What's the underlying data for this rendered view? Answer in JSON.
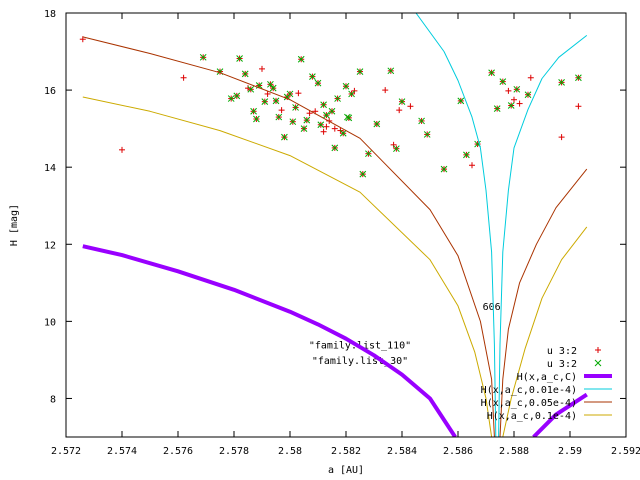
{
  "chart_data": {
    "type": "scatter",
    "xlabel": "a [AU]",
    "ylabel": "H [mag]",
    "xlim": [
      2.572,
      2.592
    ],
    "ylim": [
      7,
      18
    ],
    "grid": false,
    "legend_position": "bottom-right",
    "x_ticks": [
      {
        "v": 2.572,
        "label": "2.572"
      },
      {
        "v": 2.574,
        "label": "2.574"
      },
      {
        "v": 2.576,
        "label": "2.576"
      },
      {
        "v": 2.578,
        "label": "2.578"
      },
      {
        "v": 2.58,
        "label": "2.58"
      },
      {
        "v": 2.582,
        "label": "2.582"
      },
      {
        "v": 2.584,
        "label": "2.584"
      },
      {
        "v": 2.586,
        "label": "2.586"
      },
      {
        "v": 2.588,
        "label": "2.588"
      },
      {
        "v": 2.59,
        "label": "2.59"
      },
      {
        "v": 2.592,
        "label": "2.592"
      }
    ],
    "y_ticks": [
      {
        "v": 8,
        "label": "8"
      },
      {
        "v": 10,
        "label": "10"
      },
      {
        "v": 12,
        "label": "12"
      },
      {
        "v": 14,
        "label": "14"
      },
      {
        "v": 16,
        "label": "16"
      },
      {
        "v": 18,
        "label": "18"
      }
    ],
    "annotations": [
      {
        "text": "606",
        "x": 2.5872,
        "y": 10.3,
        "anchor": "middle"
      },
      {
        "text": "\"family.list_110\"",
        "x": 2.5825,
        "y": 9.3,
        "anchor": "middle"
      },
      {
        "text": "\"family.list_30\"",
        "x": 2.5825,
        "y": 8.9,
        "anchor": "middle"
      }
    ],
    "series": [
      {
        "name": "u 3:2",
        "kind": "points",
        "marker": "plus",
        "color": "#dd0000",
        "points": [
          [
            2.5726,
            17.32
          ],
          [
            2.574,
            14.45
          ],
          [
            2.5903,
            15.58
          ],
          [
            2.5897,
            14.78
          ],
          [
            2.5762,
            16.32
          ],
          [
            2.5769,
            16.85
          ],
          [
            2.5775,
            16.48
          ],
          [
            2.5779,
            15.78
          ],
          [
            2.5781,
            15.85
          ],
          [
            2.5782,
            16.82
          ],
          [
            2.5784,
            16.42
          ],
          [
            2.5785,
            16.05
          ],
          [
            2.5786,
            16.02
          ],
          [
            2.5787,
            15.45
          ],
          [
            2.5788,
            15.25
          ],
          [
            2.5789,
            16.12
          ],
          [
            2.579,
            16.55
          ],
          [
            2.5791,
            15.7
          ],
          [
            2.5792,
            15.9
          ],
          [
            2.5793,
            16.15
          ],
          [
            2.5794,
            16.05
          ],
          [
            2.5795,
            15.72
          ],
          [
            2.5796,
            15.3
          ],
          [
            2.5797,
            15.48
          ],
          [
            2.5798,
            14.78
          ],
          [
            2.5799,
            15.82
          ],
          [
            2.58,
            15.9
          ],
          [
            2.5801,
            15.18
          ],
          [
            2.5802,
            15.55
          ],
          [
            2.5803,
            15.92
          ],
          [
            2.5804,
            16.8
          ],
          [
            2.5805,
            15.0
          ],
          [
            2.5806,
            15.22
          ],
          [
            2.5807,
            15.4
          ],
          [
            2.5808,
            16.35
          ],
          [
            2.5809,
            15.45
          ],
          [
            2.581,
            16.18
          ],
          [
            2.5811,
            15.1
          ],
          [
            2.5812,
            14.92
          ],
          [
            2.5812,
            15.62
          ],
          [
            2.5813,
            15.05
          ],
          [
            2.5813,
            15.35
          ],
          [
            2.5814,
            15.2
          ],
          [
            2.5815,
            15.45
          ],
          [
            2.5816,
            14.5
          ],
          [
            2.5816,
            15.0
          ],
          [
            2.5817,
            15.78
          ],
          [
            2.5818,
            14.95
          ],
          [
            2.5819,
            14.88
          ],
          [
            2.582,
            16.1
          ],
          [
            2.5821,
            15.28
          ],
          [
            2.5822,
            15.9
          ],
          [
            2.5823,
            15.98
          ],
          [
            2.5825,
            16.48
          ],
          [
            2.5826,
            13.82
          ],
          [
            2.5828,
            14.35
          ],
          [
            2.5831,
            15.12
          ],
          [
            2.5834,
            16.0
          ],
          [
            2.5836,
            16.5
          ],
          [
            2.5837,
            14.58
          ],
          [
            2.5838,
            14.48
          ],
          [
            2.5839,
            15.48
          ],
          [
            2.584,
            15.7
          ],
          [
            2.5843,
            15.58
          ],
          [
            2.5847,
            15.2
          ],
          [
            2.5849,
            14.85
          ],
          [
            2.5855,
            13.95
          ],
          [
            2.5861,
            15.72
          ],
          [
            2.5863,
            14.32
          ],
          [
            2.5865,
            14.05
          ],
          [
            2.5867,
            14.6
          ],
          [
            2.5872,
            16.45
          ],
          [
            2.5874,
            15.52
          ],
          [
            2.5876,
            16.22
          ],
          [
            2.5878,
            15.98
          ],
          [
            2.5879,
            15.6
          ],
          [
            2.588,
            15.75
          ],
          [
            2.5881,
            16.02
          ],
          [
            2.5882,
            15.65
          ],
          [
            2.5885,
            15.88
          ],
          [
            2.5886,
            16.32
          ],
          [
            2.5897,
            16.2
          ],
          [
            2.5903,
            16.32
          ]
        ]
      },
      {
        "name": "u 3:2",
        "kind": "points",
        "marker": "cross",
        "color": "#00aa00",
        "points": [
          [
            2.5769,
            16.85
          ],
          [
            2.5775,
            16.48
          ],
          [
            2.5779,
            15.78
          ],
          [
            2.5781,
            15.85
          ],
          [
            2.5782,
            16.82
          ],
          [
            2.5784,
            16.42
          ],
          [
            2.5786,
            16.02
          ],
          [
            2.5787,
            15.45
          ],
          [
            2.5788,
            15.25
          ],
          [
            2.5789,
            16.12
          ],
          [
            2.5791,
            15.7
          ],
          [
            2.5793,
            16.15
          ],
          [
            2.5794,
            16.05
          ],
          [
            2.5795,
            15.72
          ],
          [
            2.5796,
            15.3
          ],
          [
            2.5798,
            14.78
          ],
          [
            2.5799,
            15.82
          ],
          [
            2.58,
            15.9
          ],
          [
            2.5801,
            15.18
          ],
          [
            2.5802,
            15.55
          ],
          [
            2.5804,
            16.8
          ],
          [
            2.5805,
            15.0
          ],
          [
            2.5806,
            15.22
          ],
          [
            2.5808,
            16.35
          ],
          [
            2.581,
            16.18
          ],
          [
            2.5811,
            15.1
          ],
          [
            2.5812,
            15.62
          ],
          [
            2.5813,
            15.35
          ],
          [
            2.5815,
            15.45
          ],
          [
            2.5816,
            14.5
          ],
          [
            2.5817,
            15.78
          ],
          [
            2.5819,
            14.88
          ],
          [
            2.582,
            16.1
          ],
          [
            2.5821,
            15.28
          ],
          [
            2.5822,
            15.9
          ],
          [
            2.5825,
            16.48
          ],
          [
            2.5826,
            13.82
          ],
          [
            2.5828,
            14.35
          ],
          [
            2.5831,
            15.12
          ],
          [
            2.5836,
            16.5
          ],
          [
            2.5838,
            14.48
          ],
          [
            2.584,
            15.7
          ],
          [
            2.5847,
            15.2
          ],
          [
            2.5849,
            14.85
          ],
          [
            2.5855,
            13.95
          ],
          [
            2.5861,
            15.72
          ],
          [
            2.5863,
            14.32
          ],
          [
            2.5867,
            14.6
          ],
          [
            2.5872,
            16.45
          ],
          [
            2.5874,
            15.52
          ],
          [
            2.5876,
            16.22
          ],
          [
            2.5879,
            15.6
          ],
          [
            2.5881,
            16.02
          ],
          [
            2.5885,
            15.88
          ],
          [
            2.5897,
            16.2
          ],
          [
            2.5903,
            16.32
          ],
          [
            2.58205,
            15.3
          ]
        ]
      },
      {
        "name": "H(x,a_c,C)",
        "kind": "line",
        "color": "#9900ff",
        "segments": [
          [
            [
              2.5726,
              11.95
            ],
            [
              2.574,
              11.72
            ],
            [
              2.576,
              11.3
            ],
            [
              2.578,
              10.82
            ],
            [
              2.58,
              10.25
            ],
            [
              2.581,
              9.92
            ],
            [
              2.582,
              9.55
            ],
            [
              2.583,
              9.12
            ],
            [
              2.584,
              8.62
            ],
            [
              2.585,
              8.0
            ],
            [
              2.5859,
              7.0
            ]
          ],
          [
            [
              2.5887,
              7.0
            ],
            [
              2.5895,
              7.58
            ],
            [
              2.5906,
              8.1
            ]
          ]
        ]
      },
      {
        "name": "H(x,a_c,0.01e-4)",
        "kind": "line",
        "color": "#00ccdd",
        "segments": [
          [
            [
              2.5845,
              18.0
            ],
            [
              2.5855,
              17.0
            ],
            [
              2.586,
              16.25
            ],
            [
              2.5865,
              15.3
            ],
            [
              2.5868,
              14.5
            ],
            [
              2.587,
              13.4
            ],
            [
              2.5872,
              11.8
            ],
            [
              2.5873,
              9.4
            ],
            [
              2.58735,
              7.0
            ]
          ],
          [
            [
              2.58745,
              7.0
            ],
            [
              2.5875,
              9.4
            ],
            [
              2.5876,
              11.8
            ],
            [
              2.5878,
              13.4
            ],
            [
              2.588,
              14.5
            ],
            [
              2.5885,
              15.5
            ],
            [
              2.589,
              16.3
            ],
            [
              2.5896,
              16.85
            ],
            [
              2.5906,
              17.42
            ]
          ]
        ]
      },
      {
        "name": "H(x,a_c,0.05e-4)",
        "kind": "line",
        "color": "#aa3300",
        "segments": [
          [
            [
              2.5726,
              17.38
            ],
            [
              2.575,
              16.95
            ],
            [
              2.5775,
              16.45
            ],
            [
              2.58,
              15.75
            ],
            [
              2.5825,
              14.75
            ],
            [
              2.585,
              12.9
            ],
            [
              2.586,
              11.7
            ],
            [
              2.5868,
              10.0
            ],
            [
              2.5872,
              8.5
            ],
            [
              2.5873,
              7.0
            ]
          ],
          [
            [
              2.5875,
              7.0
            ],
            [
              2.5876,
              8.5
            ],
            [
              2.5878,
              9.8
            ],
            [
              2.5882,
              11.0
            ],
            [
              2.5888,
              12.0
            ],
            [
              2.5895,
              12.95
            ],
            [
              2.5906,
              13.95
            ]
          ]
        ]
      },
      {
        "name": "H(x,a_c,0.1e-4)",
        "kind": "line",
        "color": "#ccaa00",
        "segments": [
          [
            [
              2.5726,
              15.82
            ],
            [
              2.575,
              15.45
            ],
            [
              2.5775,
              14.95
            ],
            [
              2.58,
              14.3
            ],
            [
              2.5825,
              13.35
            ],
            [
              2.585,
              11.6
            ],
            [
              2.586,
              10.4
            ],
            [
              2.5866,
              9.2
            ],
            [
              2.587,
              8.0
            ],
            [
              2.5872,
              7.0
            ]
          ],
          [
            [
              2.5876,
              7.0
            ],
            [
              2.5879,
              8.0
            ],
            [
              2.5884,
              9.3
            ],
            [
              2.589,
              10.6
            ],
            [
              2.5897,
              11.6
            ],
            [
              2.5906,
              12.45
            ]
          ]
        ]
      }
    ]
  }
}
